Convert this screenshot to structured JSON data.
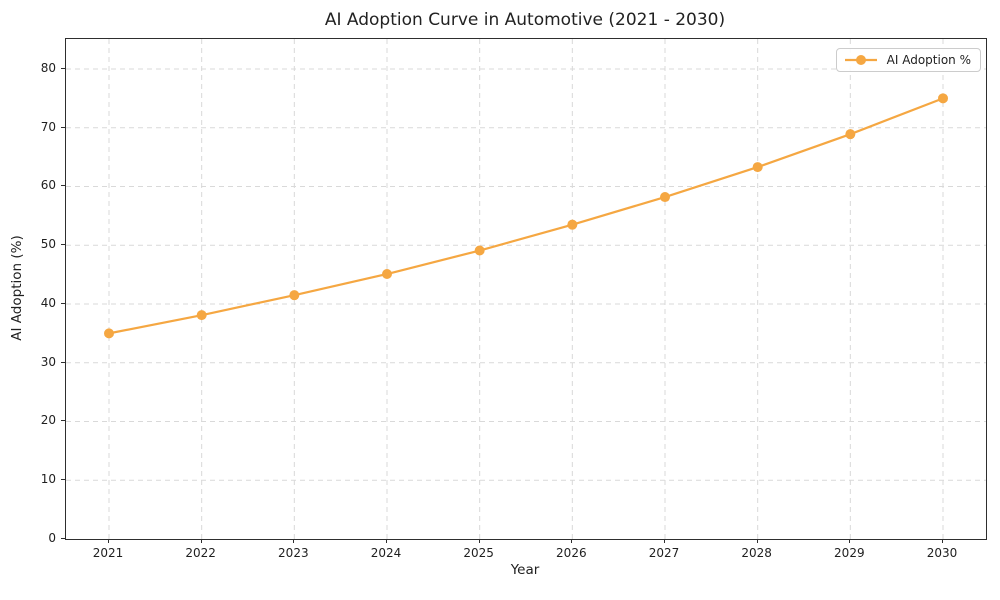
{
  "chart_data": {
    "type": "line",
    "title": "AI Adoption Curve in Automotive (2021 - 2030)",
    "xlabel": "Year",
    "ylabel": "AI Adoption (%)",
    "categories": [
      "2021",
      "2022",
      "2023",
      "2024",
      "2025",
      "2026",
      "2027",
      "2028",
      "2029",
      "2030"
    ],
    "series": [
      {
        "name": "AI Adoption %",
        "values": [
          35.0,
          38.1,
          41.5,
          45.1,
          49.1,
          53.5,
          58.2,
          63.3,
          68.9,
          75.0
        ],
        "color": "#F5A742",
        "marker": "circle",
        "line_width": 2.2,
        "marker_radius": 5
      }
    ],
    "ylim": [
      0,
      85.1
    ],
    "yticks": [
      0,
      10,
      20,
      30,
      40,
      50,
      60,
      70,
      80
    ],
    "grid": "dashed-both-axes",
    "legend_position": "upper-right"
  },
  "colors": {
    "accent": "#F5A742",
    "grid": "#D9D9D9",
    "spine": "#2E2E2E",
    "text": "#1F1F1F",
    "legend_border": "#CCCCCC",
    "background": "#FFFFFF"
  }
}
